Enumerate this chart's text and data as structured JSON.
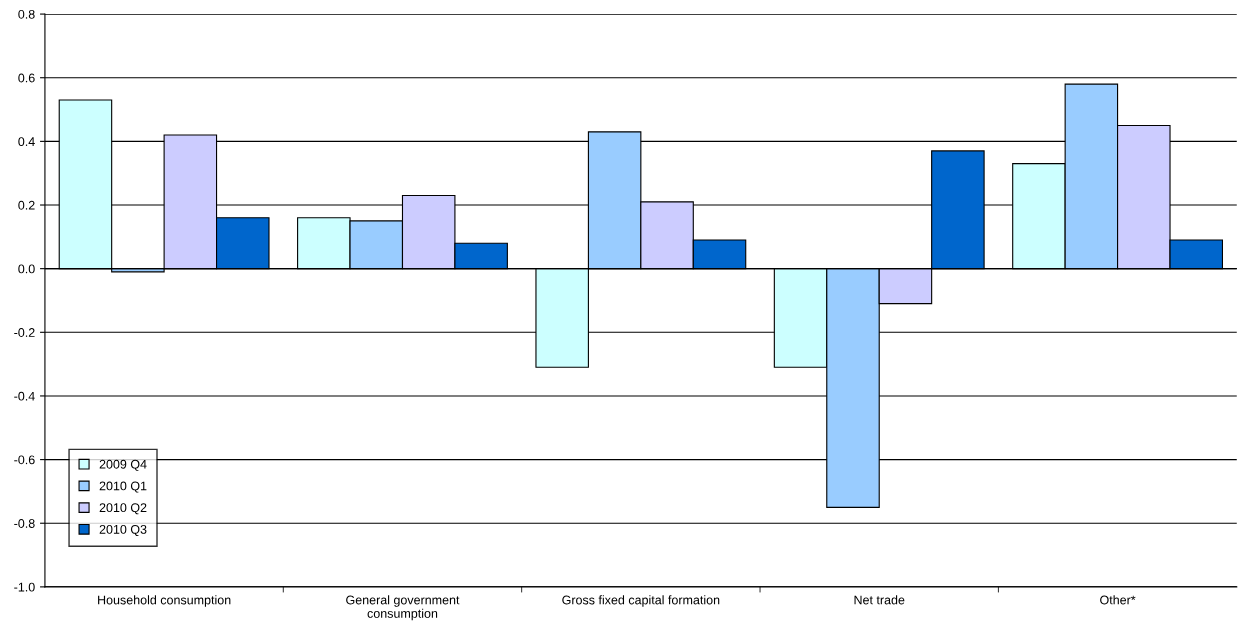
{
  "chart_data": {
    "type": "bar",
    "categories": [
      "Household consumption",
      "General government\nconsumption",
      "Gross fixed capital formation",
      "Net trade",
      "Other*"
    ],
    "series": [
      {
        "name": "2009 Q4",
        "color": "#ccffff",
        "values": [
          0.53,
          0.16,
          -0.31,
          -0.31,
          0.33
        ]
      },
      {
        "name": "2010 Q1",
        "color": "#99ccff",
        "values": [
          -0.01,
          0.15,
          0.43,
          -0.75,
          0.58
        ]
      },
      {
        "name": "2010 Q2",
        "color": "#ccccff",
        "values": [
          0.42,
          0.23,
          0.21,
          -0.11,
          0.45
        ]
      },
      {
        "name": "2010 Q3",
        "color": "#0066cc",
        "values": [
          0.16,
          0.08,
          0.09,
          0.37,
          0.09
        ]
      }
    ],
    "ylim": [
      -1.0,
      0.8
    ],
    "yticks": [
      {
        "value": -1.0,
        "label": "-1.0"
      },
      {
        "value": -0.8,
        "label": "-0.8"
      },
      {
        "value": -0.6,
        "label": "-0.6"
      },
      {
        "value": -0.4,
        "label": "-0.4"
      },
      {
        "value": -0.2,
        "label": "-0.2"
      },
      {
        "value": 0.0,
        "label": "0.0"
      },
      {
        "value": 0.2,
        "label": "0.2"
      },
      {
        "value": 0.4,
        "label": "0.4"
      },
      {
        "value": 0.6,
        "label": "0.6"
      },
      {
        "value": 0.8,
        "label": "0.8"
      }
    ],
    "grid": "y",
    "legend": "bottom left"
  }
}
